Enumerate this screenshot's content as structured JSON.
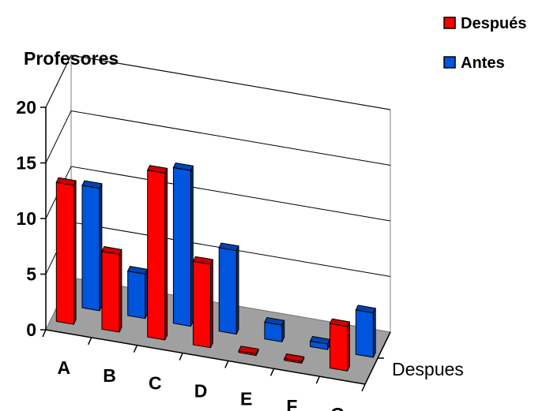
{
  "chart_data": {
    "type": "bar",
    "title": "Profesores",
    "categories": [
      "A",
      "B",
      "C",
      "D",
      "E",
      "F",
      "G"
    ],
    "series": [
      {
        "name": "Después",
        "color": "#ff0000",
        "values": [
          12.5,
          7,
          15,
          7.5,
          0,
          0,
          4
        ]
      },
      {
        "name": "Antes",
        "color": "#0055dd",
        "values": [
          11,
          4,
          14,
          7.5,
          1.5,
          0.5,
          4
        ]
      }
    ],
    "ylim": [
      0,
      20
    ],
    "yticks": [
      "0",
      "5",
      "10",
      "15",
      "20"
    ],
    "depth_label": "Despues",
    "legend": "top-right",
    "grid": true
  }
}
